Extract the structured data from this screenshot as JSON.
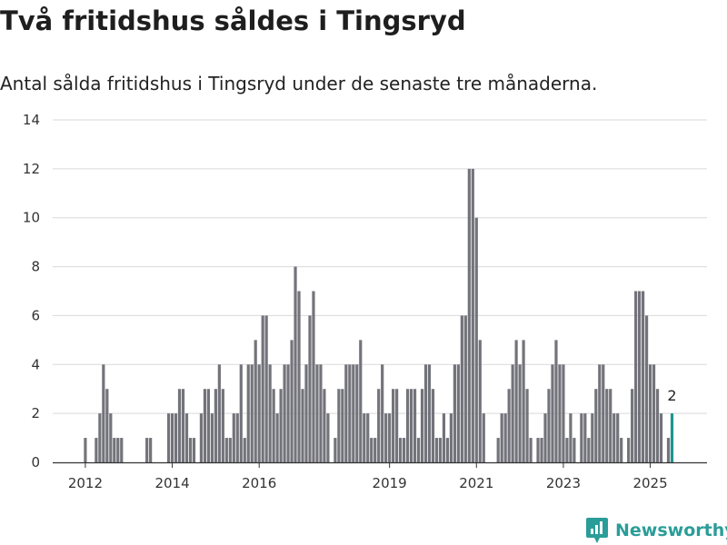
{
  "title": "Två fritidshus såldes i Tingsryd",
  "subtitle": "Antal sålda fritidshus i Tingsryd under de senaste tre månaderna.",
  "brand": {
    "name": "Newsworthy",
    "icon": "newsworthy-logo-icon",
    "color": "#2a9d98"
  },
  "colors": {
    "bar": "#73737b",
    "highlight": "#1f958d",
    "grid": "#d9d9d9",
    "axis": "#333333"
  },
  "chart_data": {
    "type": "bar",
    "x_unit": "month",
    "start_month": "2011-07",
    "ylim": [
      0,
      14
    ],
    "yticks": [
      0,
      2,
      4,
      6,
      8,
      10,
      12,
      14
    ],
    "xticks": [
      "2012",
      "2014",
      "2016",
      "2019",
      "2021",
      "2023",
      "2025"
    ],
    "grid": true,
    "highlight_last": true,
    "highlight_label": "2",
    "values": [
      0,
      0,
      0,
      0,
      0,
      0,
      1,
      0,
      0,
      1,
      2,
      4,
      3,
      2,
      1,
      1,
      1,
      0,
      0,
      0,
      0,
      0,
      0,
      1,
      1,
      0,
      0,
      0,
      0,
      2,
      2,
      2,
      3,
      3,
      2,
      1,
      1,
      0,
      2,
      3,
      3,
      2,
      3,
      4,
      3,
      1,
      1,
      2,
      2,
      4,
      1,
      4,
      4,
      5,
      4,
      6,
      6,
      4,
      3,
      2,
      3,
      4,
      4,
      5,
      8,
      7,
      3,
      4,
      6,
      7,
      4,
      4,
      3,
      2,
      0,
      1,
      3,
      3,
      4,
      4,
      4,
      4,
      5,
      2,
      2,
      1,
      1,
      3,
      4,
      2,
      2,
      3,
      3,
      1,
      1,
      3,
      3,
      3,
      1,
      3,
      4,
      4,
      3,
      1,
      1,
      2,
      1,
      2,
      4,
      4,
      6,
      6,
      12,
      12,
      10,
      5,
      2,
      0,
      0,
      0,
      1,
      2,
      2,
      3,
      4,
      5,
      4,
      5,
      3,
      1,
      0,
      1,
      1,
      2,
      3,
      4,
      5,
      4,
      4,
      1,
      2,
      1,
      0,
      2,
      2,
      1,
      2,
      3,
      4,
      4,
      3,
      3,
      2,
      2,
      1,
      0,
      1,
      3,
      7,
      7,
      7,
      6,
      4,
      4,
      3,
      2,
      0,
      1,
      2
    ]
  }
}
